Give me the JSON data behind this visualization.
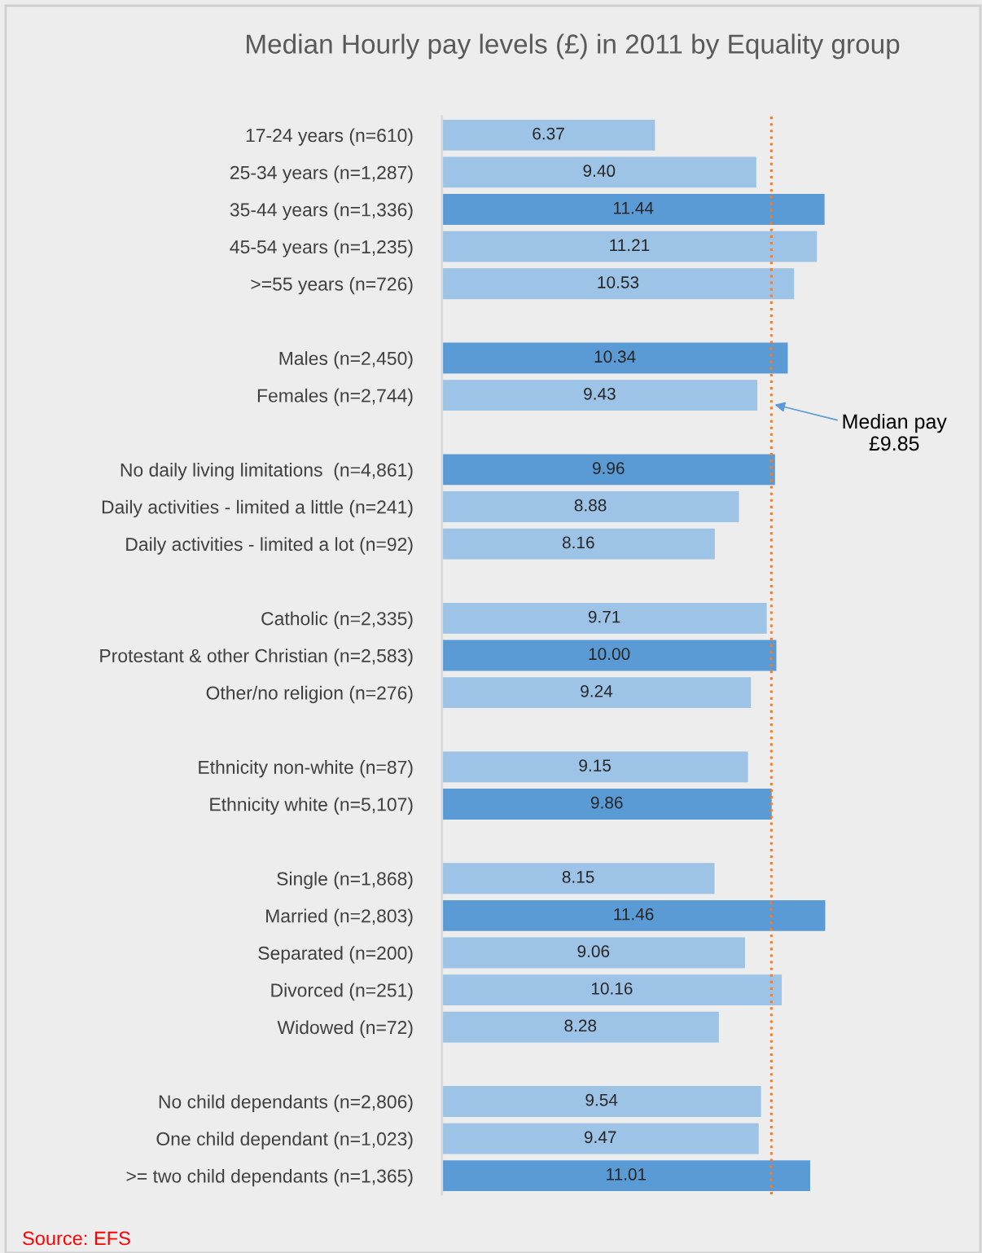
{
  "chart_data": {
    "type": "bar",
    "orientation": "horizontal",
    "title": "Median Hourly pay levels (£) in 2011 by Equality group",
    "categories": [
      "17-24 years (n=610)",
      "25-34 years (n=1,287)",
      "35-44 years (n=1,336)",
      "45-54 years (n=1,235)",
      ">=55 years (n=726)",
      null,
      "Males (n=2,450)",
      "Females (n=2,744)",
      null,
      "No daily living limitations  (n=4,861)",
      "Daily activities - limited a little (n=241)",
      "Daily activities - limited a lot (n=92)",
      null,
      "Catholic (n=2,335)",
      "Protestant & other Christian (n=2,583)",
      "Other/no religion (n=276)",
      null,
      "Ethnicity non-white (n=87)",
      "Ethnicity white (n=5,107)",
      null,
      "Single (n=1,868)",
      "Married (n=2,803)",
      "Separated (n=200)",
      "Divorced (n=251)",
      "Widowed (n=72)",
      null,
      "No child dependants (n=2,806)",
      "One child dependant (n=1,023)",
      ">= two child dependants (n=1,365)"
    ],
    "values": [
      6.37,
      9.4,
      11.44,
      11.21,
      10.53,
      null,
      10.34,
      9.43,
      null,
      9.96,
      8.88,
      8.16,
      null,
      9.71,
      10.0,
      9.24,
      null,
      9.15,
      9.86,
      null,
      8.15,
      11.46,
      9.06,
      10.16,
      8.28,
      null,
      9.54,
      9.47,
      11.01
    ],
    "value_labels": [
      "6.37",
      "9.40",
      "11.44",
      "11.21",
      "10.53",
      null,
      "10.34",
      "9.43",
      null,
      "9.96",
      "8.88",
      "8.16",
      null,
      "9.71",
      "10.00",
      "9.24",
      null,
      "9.15",
      "9.86",
      null,
      "8.15",
      "11.46",
      "9.06",
      "10.16",
      "8.28",
      null,
      "9.54",
      "9.47",
      "11.01"
    ],
    "colors": [
      "#9dc3e6",
      "#9dc3e6",
      "#5b9bd5",
      "#9dc3e6",
      "#9dc3e6",
      null,
      "#5b9bd5",
      "#9dc3e6",
      null,
      "#5b9bd5",
      "#9dc3e6",
      "#9dc3e6",
      null,
      "#9dc3e6",
      "#5b9bd5",
      "#9dc3e6",
      null,
      "#9dc3e6",
      "#5b9bd5",
      null,
      "#9dc3e6",
      "#5b9bd5",
      "#9dc3e6",
      "#9dc3e6",
      "#9dc3e6",
      null,
      "#9dc3e6",
      "#9dc3e6",
      "#5b9bd5"
    ],
    "xlim": [
      0,
      16
    ],
    "ref_lines": [
      {
        "axis": "x",
        "value": 9.85,
        "label": "Median pay\n£9.85",
        "color": "#ed7d31",
        "line_style": "dotted"
      }
    ],
    "annotations": [
      "Source: EFS"
    ],
    "grid": false,
    "tick_labels": "y"
  }
}
